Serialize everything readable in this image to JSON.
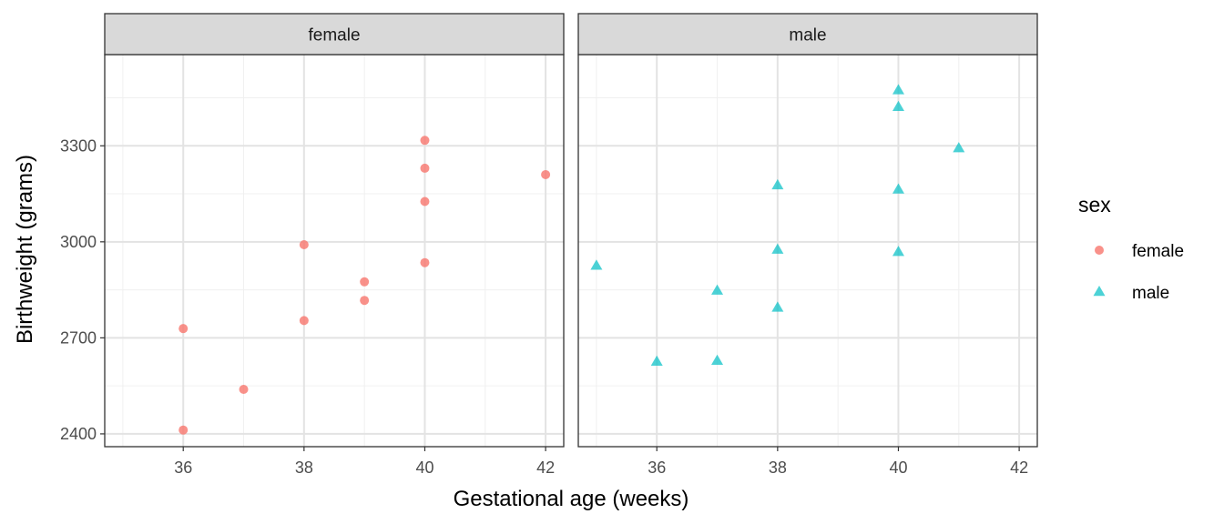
{
  "chart_data": {
    "type": "scatter",
    "xlabel": "Gestational age (weeks)",
    "ylabel": "Birthweight (grams)",
    "xlim": [
      34.7,
      42.3
    ],
    "ylim": [
      2360,
      3585
    ],
    "x_ticks": [
      36,
      38,
      40,
      42
    ],
    "y_ticks": [
      2400,
      2700,
      3000,
      3300
    ],
    "x_minor": [
      35,
      37,
      39,
      41
    ],
    "y_minor": [
      2550,
      2850,
      3150,
      3450
    ],
    "grid": true,
    "legend": {
      "title": "sex",
      "position": "right",
      "entries": [
        {
          "label": "female",
          "shape": "circle",
          "color": "#F8766D"
        },
        {
          "label": "male",
          "shape": "triangle",
          "color": "#00BFC4"
        }
      ]
    },
    "panels": [
      {
        "strip": "female",
        "shape": "circle",
        "color": "#F8766D",
        "points": [
          {
            "x": 36,
            "y": 2729
          },
          {
            "x": 36,
            "y": 2412
          },
          {
            "x": 37,
            "y": 2539
          },
          {
            "x": 38,
            "y": 2991
          },
          {
            "x": 38,
            "y": 2754
          },
          {
            "x": 39,
            "y": 2875
          },
          {
            "x": 39,
            "y": 2817
          },
          {
            "x": 40,
            "y": 3317
          },
          {
            "x": 40,
            "y": 3230
          },
          {
            "x": 40,
            "y": 3126
          },
          {
            "x": 40,
            "y": 2935
          },
          {
            "x": 42,
            "y": 3210
          }
        ]
      },
      {
        "strip": "male",
        "shape": "triangle",
        "color": "#00BFC4",
        "points": [
          {
            "x": 35,
            "y": 2925
          },
          {
            "x": 36,
            "y": 2625
          },
          {
            "x": 37,
            "y": 2847
          },
          {
            "x": 37,
            "y": 2628
          },
          {
            "x": 38,
            "y": 3176
          },
          {
            "x": 38,
            "y": 2975
          },
          {
            "x": 38,
            "y": 2794
          },
          {
            "x": 40,
            "y": 3473
          },
          {
            "x": 40,
            "y": 3421
          },
          {
            "x": 40,
            "y": 3163
          },
          {
            "x": 40,
            "y": 2968
          },
          {
            "x": 41,
            "y": 3292
          }
        ]
      }
    ]
  }
}
